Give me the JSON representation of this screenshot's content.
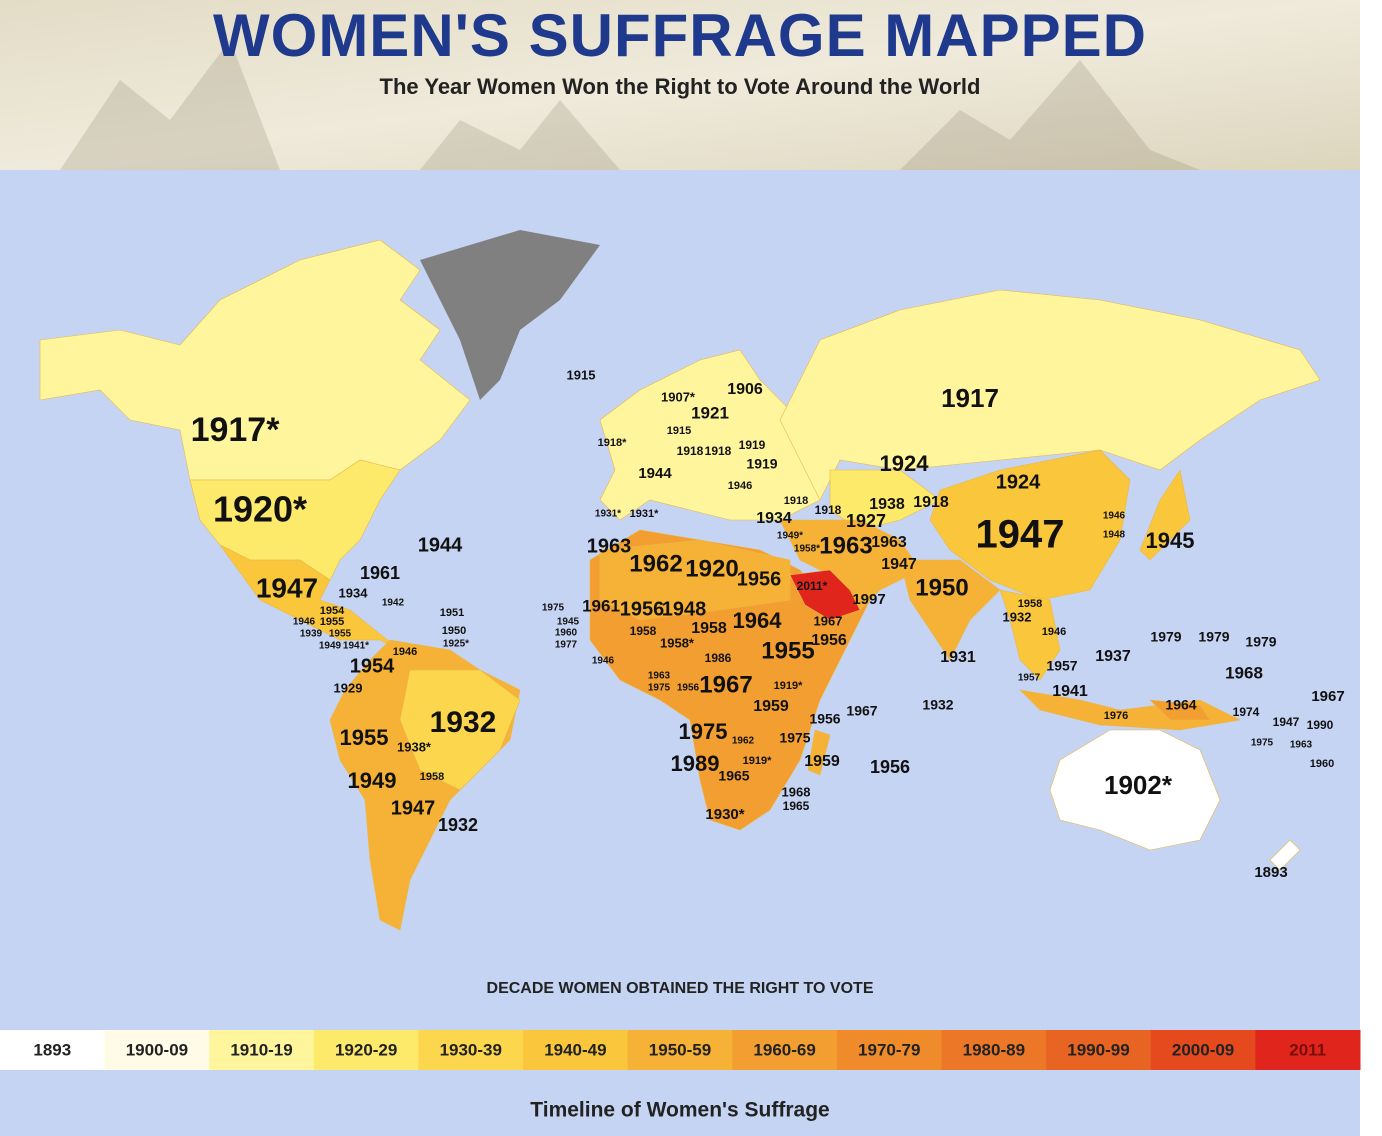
{
  "header": {
    "title": "WOMEN'S SUFFRAGE MAPPED",
    "subtitle": "The Year Women Won the Right to Vote Around the World"
  },
  "map": {
    "labels": [
      "1917*",
      "1920*",
      "1944",
      "1961",
      "1947",
      "1934",
      "1954",
      "1929",
      "1955",
      "1938*",
      "1932",
      "1949",
      "1958",
      "1947",
      "1932",
      "1915",
      "1907*",
      "1906",
      "1921",
      "1915",
      "1918*",
      "1918",
      "1918",
      "1919",
      "1919",
      "1944",
      "1946",
      "1931*",
      "1931*",
      "1934",
      "1918",
      "1918",
      "1963",
      "1962",
      "1920",
      "1956",
      "2011*",
      "1963",
      "1949*",
      "1958*",
      "1997",
      "1917",
      "1924",
      "1924",
      "1938",
      "1918",
      "1927",
      "1963",
      "1947",
      "1947",
      "1950",
      "1946",
      "1948",
      "1945",
      "1958",
      "1932",
      "1946",
      "1931",
      "1957",
      "1957",
      "1937",
      "1941",
      "1932",
      "1979",
      "1979",
      "1979",
      "1968",
      "1967",
      "1964",
      "1974",
      "1976",
      "1947",
      "1990",
      "1975",
      "1963",
      "1960",
      "1902*",
      "1893",
      "1975",
      "1961",
      "1956",
      "1948",
      "1964",
      "1967",
      "1958",
      "1958",
      "1958*",
      "1955",
      "1956",
      "1946",
      "1986",
      "1963",
      "1975",
      "1956",
      "1967",
      "1919*",
      "1959",
      "1956",
      "1967",
      "1975",
      "1962",
      "1975",
      "1989",
      "1919*",
      "1965",
      "1959",
      "1956",
      "1968",
      "1965",
      "1930*",
      "1951",
      "1950",
      "1925*",
      "1946",
      "1954",
      "1955",
      "1946",
      "1939",
      "1955",
      "1949",
      "1941*",
      "1942",
      "1945",
      "1960",
      "1977"
    ]
  },
  "legend": {
    "title": "DECADE WOMEN OBTAINED THE RIGHT TO VOTE",
    "items": [
      {
        "label": "1893",
        "color": "#ffffff"
      },
      {
        "label": "1900-09",
        "color": "#fffbe6"
      },
      {
        "label": "1910-19",
        "color": "#fff59c"
      },
      {
        "label": "1920-29",
        "color": "#fde96a"
      },
      {
        "label": "1930-39",
        "color": "#fcd64c"
      },
      {
        "label": "1940-49",
        "color": "#f9c63c"
      },
      {
        "label": "1950-59",
        "color": "#f6b236"
      },
      {
        "label": "1960-69",
        "color": "#f39e30"
      },
      {
        "label": "1970-79",
        "color": "#ef8b2b"
      },
      {
        "label": "1980-89",
        "color": "#ec7827"
      },
      {
        "label": "1990-99",
        "color": "#e86423"
      },
      {
        "label": "2000-09",
        "color": "#e54a1f"
      },
      {
        "label": "2011",
        "color": "#e0261c"
      }
    ]
  },
  "footer": {
    "caption": "Timeline of Women's Suffrage"
  }
}
